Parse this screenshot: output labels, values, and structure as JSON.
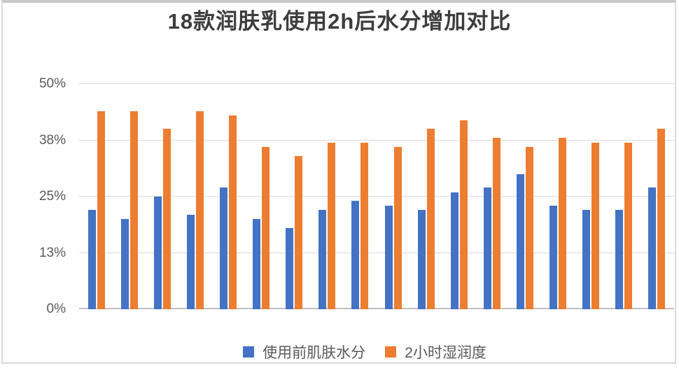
{
  "chart_data": {
    "type": "bar",
    "title": "18款润肤乳使用2h后水分增加对比",
    "xlabel": "",
    "ylabel": "",
    "ylim": [
      0,
      50
    ],
    "grid": true,
    "legend_position": "bottom",
    "x_axis_labels_visible": false,
    "group_count": 18,
    "yticks": [
      {
        "label": "0%",
        "value": 0
      },
      {
        "label": "13%",
        "value": 12.5
      },
      {
        "label": "25%",
        "value": 25
      },
      {
        "label": "38%",
        "value": 37.5
      },
      {
        "label": "50%",
        "value": 50
      }
    ],
    "series": [
      {
        "name": "使用前肌肤水分",
        "color": "#4472C4",
        "values": [
          22,
          20,
          25,
          21,
          27,
          20,
          18,
          22,
          24,
          23,
          22,
          26,
          27,
          30,
          23,
          22,
          22,
          27
        ]
      },
      {
        "name": "2小时湿润度",
        "color": "#ED7D31",
        "values": [
          44,
          44,
          40,
          44,
          43,
          36,
          34,
          37,
          37,
          36,
          40,
          42,
          38,
          36,
          38,
          37,
          37,
          40
        ]
      }
    ]
  },
  "colors": {
    "series_blue": "#4472C4",
    "series_orange": "#ED7D31",
    "gridline": "#DCDCDC",
    "baseline": "#C0C0C0",
    "title_text": "#3D3D3D",
    "axis_text": "#595959",
    "frame_border": "#DADADA"
  }
}
